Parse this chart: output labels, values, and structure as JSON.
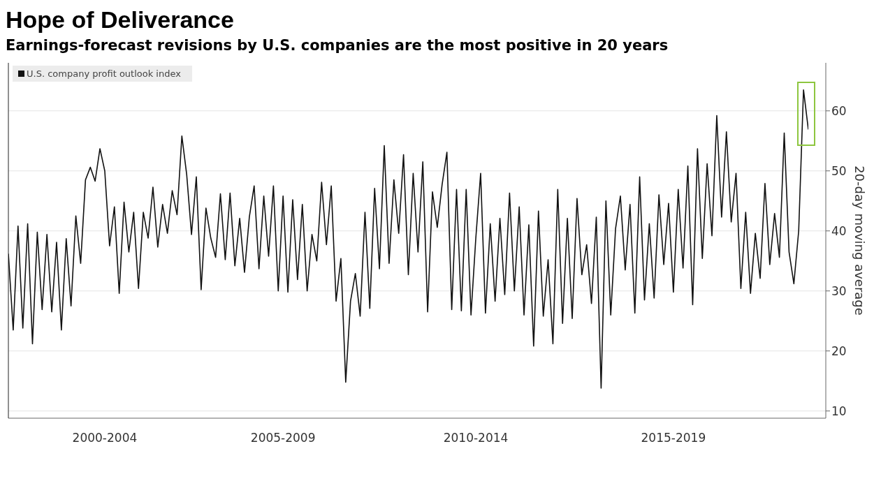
{
  "chart_data": {
    "type": "line",
    "title": "Hope of Deliverance",
    "subtitle": "Earnings-forecast revisions by U.S. companies are the most positive in 20 years",
    "ylabel": "20-day moving average",
    "categories": [
      null,
      null,
      null,
      null,
      null,
      null,
      null,
      null,
      null,
      null,
      null,
      null,
      null,
      null,
      null,
      null,
      null,
      null,
      null,
      null,
      "2000-2004",
      null,
      null,
      null,
      null,
      null,
      null,
      null,
      null,
      null,
      null,
      null,
      null,
      null,
      null,
      null,
      null,
      null,
      null,
      null,
      null,
      null,
      null,
      null,
      null,
      null,
      null,
      null,
      null,
      null,
      null,
      null,
      null,
      null,
      null,
      null,
      null,
      "2005-2009",
      null,
      null,
      null,
      null,
      null,
      null,
      null,
      null,
      null,
      null,
      null,
      null,
      null,
      null,
      null,
      null,
      null,
      null,
      null,
      null,
      null,
      null,
      null,
      null,
      null,
      null,
      null,
      null,
      null,
      null,
      null,
      null,
      null,
      null,
      null,
      null,
      null,
      null,
      null,
      "2010-2014",
      null,
      null,
      null,
      null,
      null,
      null,
      null,
      null,
      null,
      null,
      null,
      null,
      null,
      null,
      null,
      null,
      null,
      null,
      null,
      null,
      null,
      null,
      null,
      null,
      null,
      null,
      null,
      null,
      null,
      null,
      null,
      null,
      null,
      null,
      null,
      null,
      null,
      null,
      null,
      null,
      "2015-2019",
      null,
      null,
      null,
      null,
      null,
      null,
      null,
      null,
      null,
      null,
      null,
      null,
      null,
      null,
      null,
      null,
      null,
      null,
      null,
      null,
      null,
      null,
      null,
      null,
      null,
      null,
      null,
      null
    ],
    "series": [
      {
        "name": "U.S. company profit outlook index",
        "color": "#111111",
        "values": [
          36.2,
          23.5,
          40.8,
          23.8,
          41.2,
          21.2,
          39.8,
          26.9,
          39.4,
          26.5,
          38.1,
          23.5,
          38.7,
          27.5,
          42.5,
          34.6,
          48.5,
          50.6,
          48.3,
          53.7,
          50,
          37.5,
          44,
          29.6,
          44.8,
          36.5,
          43.1,
          30.4,
          43.1,
          38.8,
          47.3,
          37.3,
          44.4,
          39.6,
          46.7,
          42.7,
          55.8,
          49.4,
          39.4,
          49,
          30.2,
          43.8,
          38.8,
          35.6,
          46.2,
          35.2,
          46.3,
          34.2,
          42.1,
          33.1,
          42.3,
          47.5,
          33.7,
          45.8,
          35.8,
          47.5,
          30,
          45.8,
          29.8,
          45.2,
          31.9,
          44.4,
          30,
          39.4,
          35,
          48.1,
          37.7,
          47.5,
          28.3,
          35.4,
          14.8,
          28.3,
          32.9,
          25.8,
          43.1,
          27.1,
          47.1,
          33.7,
          54.2,
          34.6,
          48.5,
          39.6,
          52.7,
          32.7,
          49.6,
          36.5,
          51.5,
          26.5,
          46.5,
          40.6,
          47.7,
          53.1,
          26.9,
          46.9,
          26.7,
          46.9,
          26,
          38.8,
          49.6,
          26.3,
          41.2,
          28.3,
          42.1,
          29.4,
          46.3,
          30,
          44,
          26,
          41,
          20.8,
          43.3,
          25.8,
          35.2,
          21.2,
          46.9,
          24.6,
          42.1,
          25.4,
          45.4,
          32.7,
          37.7,
          27.9,
          42.3,
          13.8,
          45,
          26,
          40.4,
          45.8,
          33.5,
          44.4,
          26.3,
          49,
          28.5,
          41.2,
          28.8,
          46,
          34.4,
          44.6,
          29.8,
          46.9,
          33.8,
          50.8,
          27.7,
          53.7,
          35.4,
          51.2,
          39.2,
          59.2,
          42.3,
          56.5,
          41.5,
          49.6,
          30.4,
          43.1,
          29.6,
          39.6,
          32.1,
          47.9,
          34.4,
          42.9,
          35.6,
          56.3,
          36.5,
          31.2,
          40,
          63.5,
          56.9
        ]
      }
    ],
    "ylim": [
      8.8,
      68
    ],
    "yticks": [
      10,
      20,
      30,
      40,
      50,
      60
    ],
    "grid": "y",
    "legend": "top left",
    "marker": "none",
    "line_style": "solid"
  }
}
